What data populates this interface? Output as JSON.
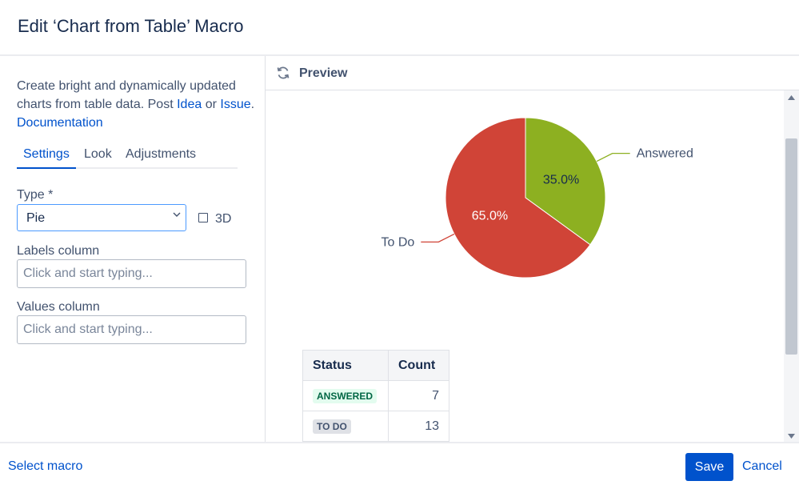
{
  "dialog": {
    "title": "Edit ‘Chart from Table’ Macro"
  },
  "settings": {
    "description_text": "Create bright and dynamically updated charts from table data. Post",
    "idea_link": "Idea",
    "or_text": "or",
    "issue_link": "Issue",
    "documentation_link": "Documentation",
    "tabs": [
      {
        "label": "Settings",
        "active": true
      },
      {
        "label": "Look",
        "active": false
      },
      {
        "label": "Adjustments",
        "active": false
      }
    ],
    "type_label": "Type *",
    "type_value": "Pie",
    "three_d_label": "3D",
    "three_d_checked": false,
    "labels_column_label": "Labels column",
    "labels_column_placeholder": "Click and start typing...",
    "values_column_label": "Values column",
    "values_column_placeholder": "Click and start typing..."
  },
  "preview": {
    "title": "Preview",
    "table": {
      "headers": [
        "Status",
        "Count"
      ],
      "rows": [
        {
          "status": "ANSWERED",
          "count": "7"
        },
        {
          "status": "TO DO",
          "count": "13"
        }
      ]
    }
  },
  "chart_data": {
    "type": "pie",
    "slices": [
      {
        "label": "Answered",
        "value": 7,
        "percent_label": "35.0%",
        "color": "#8db021",
        "text_color": "#172b4d"
      },
      {
        "label": "To Do",
        "value": 13,
        "percent_label": "65.0%",
        "color": "#d04437",
        "text_color": "#ffffff"
      }
    ]
  },
  "footer": {
    "select_macro": "Select macro",
    "save": "Save",
    "cancel": "Cancel"
  },
  "colors": {
    "accent": "#0052cc",
    "text": "#172b4d"
  }
}
